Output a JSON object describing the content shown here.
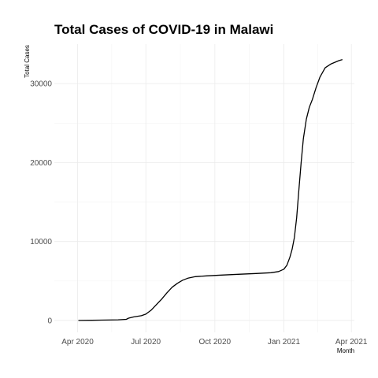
{
  "chart_data": {
    "type": "line",
    "title": "Total Cases of COVID-19 in Malawi",
    "xlabel": "Month",
    "ylabel": "Total Cases",
    "xlim": [
      "2020-03-01",
      "2021-04-05"
    ],
    "ylim": [
      -1500,
      35000
    ],
    "x_ticks": [
      {
        "label": "Apr 2020",
        "date": "2020-04-01"
      },
      {
        "label": "Jul 2020",
        "date": "2020-07-01"
      },
      {
        "label": "Oct 2020",
        "date": "2020-10-01"
      },
      {
        "label": "Jan 2021",
        "date": "2021-01-01"
      },
      {
        "label": "Apr 2021",
        "date": "2021-04-01"
      }
    ],
    "y_ticks": [
      {
        "label": "0",
        "value": 0
      },
      {
        "label": "10000",
        "value": 10000
      },
      {
        "label": "20000",
        "value": 20000
      },
      {
        "label": "30000",
        "value": 30000
      }
    ],
    "grid": true,
    "legend": "none",
    "series": [
      {
        "color": "#000000",
        "points": [
          [
            "2020-04-02",
            3
          ],
          [
            "2020-04-20",
            30
          ],
          [
            "2020-05-10",
            60
          ],
          [
            "2020-05-25",
            90
          ],
          [
            "2020-06-05",
            150
          ],
          [
            "2020-06-08",
            300
          ],
          [
            "2020-06-15",
            450
          ],
          [
            "2020-06-25",
            600
          ],
          [
            "2020-07-01",
            800
          ],
          [
            "2020-07-08",
            1300
          ],
          [
            "2020-07-15",
            2000
          ],
          [
            "2020-07-22",
            2700
          ],
          [
            "2020-07-29",
            3500
          ],
          [
            "2020-08-05",
            4200
          ],
          [
            "2020-08-12",
            4700
          ],
          [
            "2020-08-19",
            5100
          ],
          [
            "2020-08-26",
            5350
          ],
          [
            "2020-09-05",
            5550
          ],
          [
            "2020-09-20",
            5650
          ],
          [
            "2020-10-10",
            5750
          ],
          [
            "2020-11-01",
            5850
          ],
          [
            "2020-11-25",
            5950
          ],
          [
            "2020-12-15",
            6050
          ],
          [
            "2020-12-25",
            6200
          ],
          [
            "2021-01-01",
            6500
          ],
          [
            "2021-01-05",
            7000
          ],
          [
            "2021-01-09",
            8000
          ],
          [
            "2021-01-12",
            9000
          ],
          [
            "2021-01-15",
            10500
          ],
          [
            "2021-01-18",
            13000
          ],
          [
            "2021-01-21",
            16500
          ],
          [
            "2021-01-24",
            20000
          ],
          [
            "2021-01-27",
            23000
          ],
          [
            "2021-01-31",
            25500
          ],
          [
            "2021-02-04",
            27000
          ],
          [
            "2021-02-08",
            28000
          ],
          [
            "2021-02-13",
            29500
          ],
          [
            "2021-02-18",
            30800
          ],
          [
            "2021-02-25",
            32000
          ],
          [
            "2021-03-05",
            32500
          ],
          [
            "2021-03-15",
            32900
          ],
          [
            "2021-03-20",
            33050
          ]
        ]
      }
    ]
  }
}
